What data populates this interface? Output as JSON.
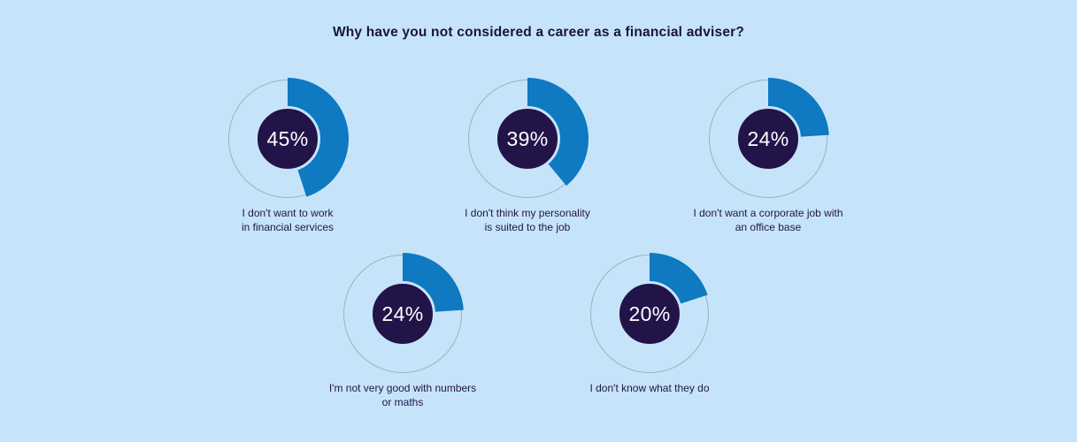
{
  "title": "Why have you not considered a career as a financial adviser?",
  "colors": {
    "background": "#c6e4f9",
    "slice": "#0f79c2",
    "center": "#221349",
    "ring_outline": "#a2adb9",
    "percent_text": "#ffffff",
    "label_text": "#221349",
    "title_text": "#1c1240"
  },
  "chart_data": {
    "type": "pie",
    "style": "donut",
    "title": "Why have you not considered a career as a financial adviser?",
    "legend": "none",
    "items": [
      {
        "value": 45,
        "pct_label": "45%",
        "label": "I don't want to work in financial services",
        "label_lines": [
          "I don't want to work",
          "in financial services"
        ]
      },
      {
        "value": 39,
        "pct_label": "39%",
        "label": "I don't think my personality is suited to the job",
        "label_lines": [
          "I don't think my personality",
          "is suited to the job"
        ]
      },
      {
        "value": 24,
        "pct_label": "24%",
        "label": "I don't want a corporate job with an office base",
        "label_lines": [
          "I don't want a corporate job with",
          "an office base"
        ]
      },
      {
        "value": 24,
        "pct_label": "24%",
        "label": "I'm not very good with numbers or maths",
        "label_lines": [
          "I'm not very good with numbers",
          "or maths"
        ]
      },
      {
        "value": 20,
        "pct_label": "20%",
        "label": "I don't know what they do",
        "label_lines": [
          "I don't know what they do"
        ]
      }
    ]
  }
}
